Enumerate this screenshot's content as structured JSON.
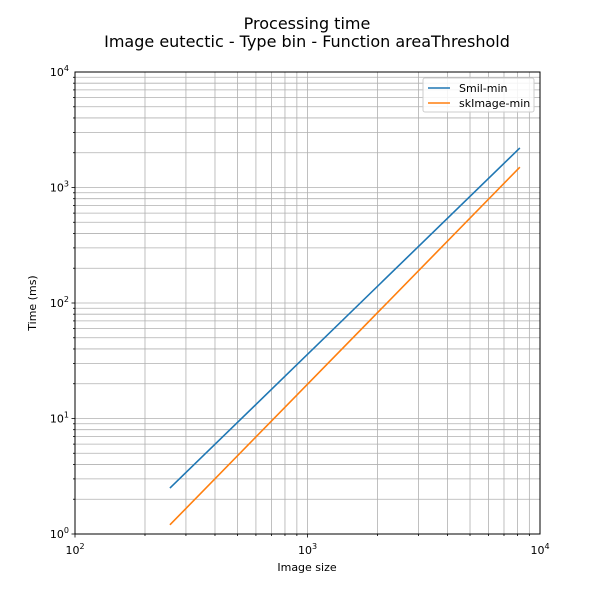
{
  "chart_data": {
    "type": "line",
    "title": "Processing time",
    "subtitle": "Image eutectic - Type bin - Function areaThreshold",
    "xlabel": "Image size",
    "ylabel": "Time (ms)",
    "xscale": "log",
    "yscale": "log",
    "xlim": [
      100,
      10000
    ],
    "ylim": [
      1,
      10000
    ],
    "grid": true,
    "legend_position": "top-right",
    "x_ticks": [
      {
        "base": "10",
        "exp": "2",
        "value": 100
      },
      {
        "base": "10",
        "exp": "3",
        "value": 1000
      },
      {
        "base": "10",
        "exp": "4",
        "value": 10000
      }
    ],
    "y_ticks": [
      {
        "base": "10",
        "exp": "0",
        "value": 1
      },
      {
        "base": "10",
        "exp": "1",
        "value": 10
      },
      {
        "base": "10",
        "exp": "2",
        "value": 100
      },
      {
        "base": "10",
        "exp": "3",
        "value": 1000
      },
      {
        "base": "10",
        "exp": "4",
        "value": 10000
      }
    ],
    "series": [
      {
        "name": "Smil-min",
        "color": "#1f77b4",
        "x": [
          256,
          8192
        ],
        "y": [
          2.5,
          2200
        ]
      },
      {
        "name": "skImage-min",
        "color": "#ff7f0e",
        "x": [
          256,
          8192
        ],
        "y": [
          1.2,
          1500
        ]
      }
    ]
  }
}
